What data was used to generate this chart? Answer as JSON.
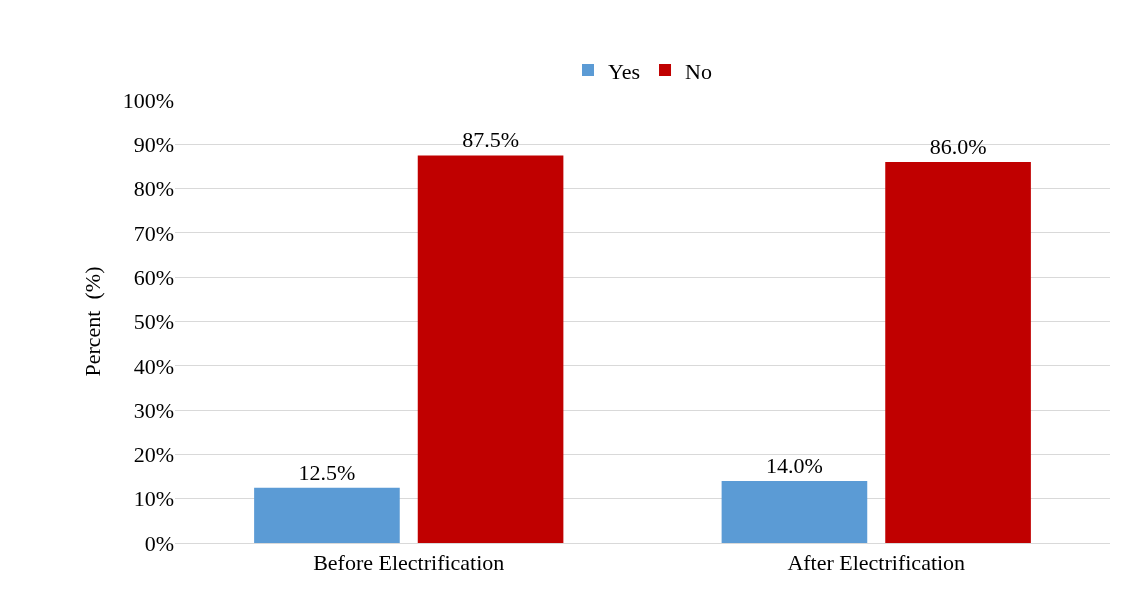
{
  "chart_data": {
    "type": "bar",
    "ylabel": "Percent  (%)",
    "categories": [
      "Before Electrification",
      "After Electrification"
    ],
    "series": [
      {
        "name": "Yes",
        "color": "#5b9bd5",
        "values": [
          12.5,
          14.0
        ],
        "value_labels": [
          "12.5%",
          "14.0%"
        ]
      },
      {
        "name": "No",
        "color": "#c00000",
        "values": [
          87.5,
          86.0
        ],
        "value_labels": [
          "87.5%",
          "86.0%"
        ]
      }
    ],
    "ylim": [
      0,
      100
    ],
    "yticks": [
      {
        "value": 0,
        "label": "0%"
      },
      {
        "value": 10,
        "label": "10%"
      },
      {
        "value": 20,
        "label": "20%"
      },
      {
        "value": 30,
        "label": "30%"
      },
      {
        "value": 40,
        "label": "40%"
      },
      {
        "value": 50,
        "label": "50%"
      },
      {
        "value": 60,
        "label": "60%"
      },
      {
        "value": 70,
        "label": "70%"
      },
      {
        "value": 80,
        "label": "80%"
      },
      {
        "value": 90,
        "label": "90%"
      },
      {
        "value": 100,
        "label": "100%"
      }
    ],
    "grid": "y",
    "legend": "top"
  }
}
